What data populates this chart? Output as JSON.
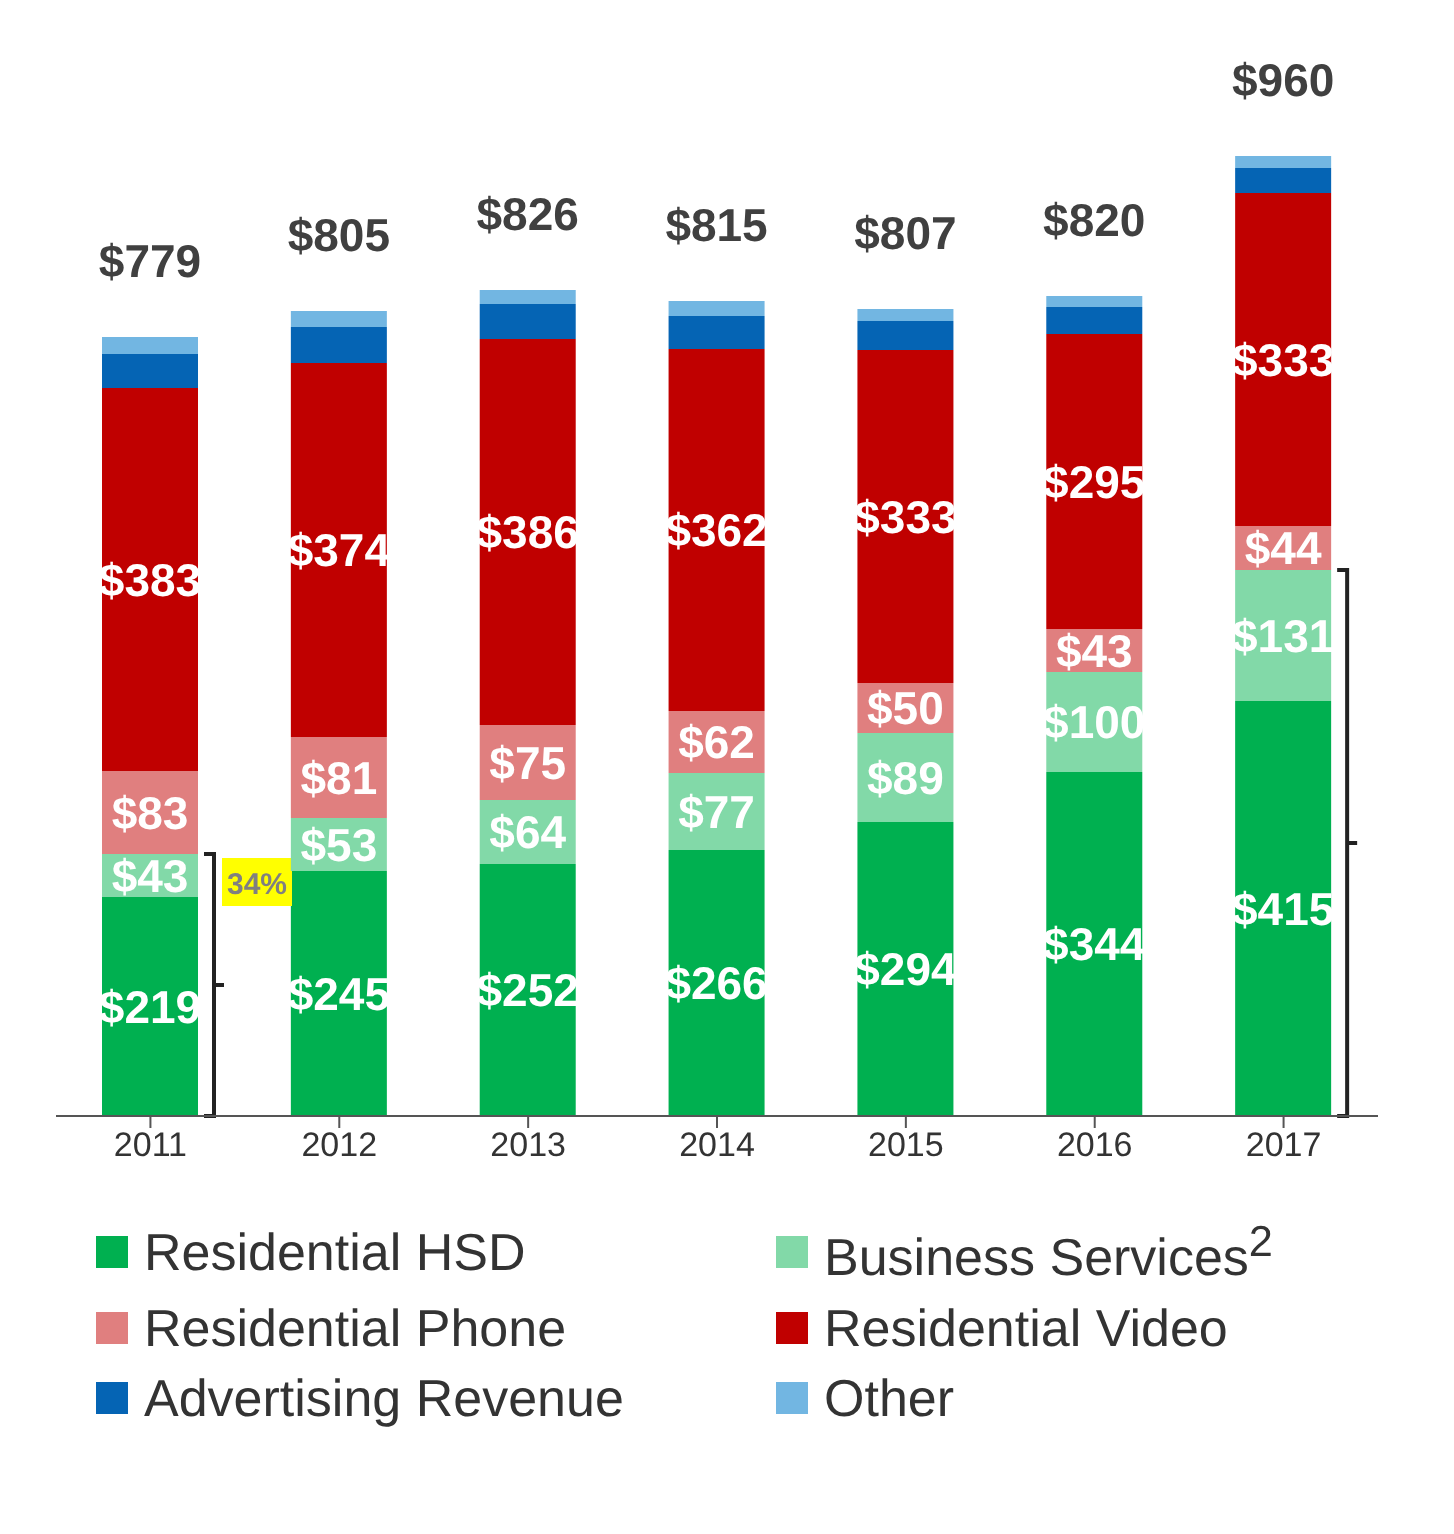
{
  "chart_data": {
    "type": "bar",
    "stacked": true,
    "categories": [
      "2011",
      "2012",
      "2013",
      "2014",
      "2015",
      "2016",
      "2017"
    ],
    "series": [
      {
        "name": "Residential HSD",
        "color": "#00b050",
        "values": [
          219,
          245,
          252,
          266,
          294,
          344,
          415
        ],
        "value_labels": [
          "$219",
          "$245",
          "$252",
          "$266",
          "$294",
          "$344",
          "$415"
        ]
      },
      {
        "name": "Business Services$^{2}$",
        "color": "#82d9a8",
        "values": [
          43,
          53,
          64,
          77,
          89,
          100,
          131
        ],
        "value_labels": [
          "$43",
          "$53",
          "$64",
          "$77",
          "$89",
          "$100",
          "$131"
        ]
      },
      {
        "name": "Residential Phone",
        "color": "#e07f7f",
        "values": [
          83,
          81,
          75,
          62,
          50,
          43,
          44
        ],
        "value_labels": [
          "$83",
          "$81",
          "$75",
          "$62",
          "$50",
          "$43",
          "$44"
        ]
      },
      {
        "name": "Residential Video",
        "color": "#c00000",
        "values": [
          383,
          374,
          386,
          362,
          333,
          295,
          333
        ],
        "value_labels": [
          "$383",
          "$374",
          "$386",
          "$362",
          "$333",
          "$295",
          "$333"
        ]
      },
      {
        "name": "Advertising Revenue",
        "color": "#0564b4",
        "values": [
          34,
          36,
          35,
          33,
          29,
          27,
          25
        ]
      },
      {
        "name": "Other",
        "color": "#72b6e2",
        "values": [
          17,
          16,
          14,
          15,
          12,
          11,
          12
        ]
      }
    ],
    "totals": [
      "$779",
      "$805",
      "$826",
      "$815",
      "$807",
      "$820",
      "$960"
    ],
    "annotations": [
      "34%"
    ],
    "legend": "bottom"
  }
}
